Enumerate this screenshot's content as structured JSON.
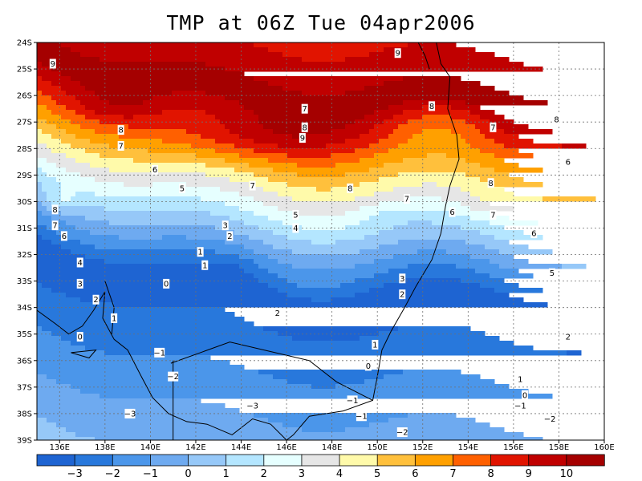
{
  "title": "TMP at 06Z Tue 04apr2006",
  "map": {
    "lat_ticks": [
      "24S",
      "25S",
      "26S",
      "27S",
      "28S",
      "29S",
      "30S",
      "31S",
      "32S",
      "33S",
      "34S",
      "35S",
      "36S",
      "37S",
      "38S",
      "39S"
    ],
    "lon_ticks": [
      "136E",
      "138E",
      "140E",
      "142E",
      "144E",
      "146E",
      "148E",
      "150E",
      "152E",
      "154E",
      "156E",
      "158E",
      "160E"
    ],
    "lon_range": [
      135,
      160
    ],
    "lat_range": [
      -24,
      -39
    ],
    "grid": true
  },
  "colorbar": {
    "labels": [
      "-3",
      "-2",
      "-1",
      "0",
      "1",
      "2",
      "3",
      "4",
      "5",
      "6",
      "7",
      "8",
      "9",
      "10"
    ],
    "colors": [
      "#1e64d2",
      "#2878dc",
      "#4b96ea",
      "#6eaaf0",
      "#96c8f8",
      "#b4e6ff",
      "#e6ffff",
      "#e6e6e6",
      "#fffaaa",
      "#ffc03c",
      "#ffa000",
      "#ff6000",
      "#e11400",
      "#c00000",
      "#a50000"
    ]
  },
  "contour_labels": [
    {
      "v": "9",
      "lon": 135.7,
      "lat": -24.8
    },
    {
      "v": "9",
      "lon": 150.9,
      "lat": -24.4
    },
    {
      "v": "7",
      "lon": 146.8,
      "lat": -26.5
    },
    {
      "v": "8",
      "lon": 146.8,
      "lat": -27.2
    },
    {
      "v": "9",
      "lon": 146.7,
      "lat": -27.6
    },
    {
      "v": "8",
      "lon": 152.4,
      "lat": -26.4
    },
    {
      "v": "7",
      "lon": 155.1,
      "lat": -27.2
    },
    {
      "v": "8",
      "lon": 157.9,
      "lat": -26.9
    },
    {
      "v": "8",
      "lon": 138.7,
      "lat": -27.3
    },
    {
      "v": "7",
      "lon": 138.7,
      "lat": -27.9
    },
    {
      "v": "6",
      "lon": 140.2,
      "lat": -28.8
    },
    {
      "v": "7",
      "lon": 144.5,
      "lat": -29.4
    },
    {
      "v": "8",
      "lon": 148.8,
      "lat": -29.5
    },
    {
      "v": "8",
      "lon": 155.0,
      "lat": -29.3
    },
    {
      "v": "6",
      "lon": 158.4,
      "lat": -28.5
    },
    {
      "v": "5",
      "lon": 141.4,
      "lat": -29.5
    },
    {
      "v": "7",
      "lon": 151.3,
      "lat": -29.9
    },
    {
      "v": "6",
      "lon": 153.3,
      "lat": -30.4
    },
    {
      "v": "7",
      "lon": 155.1,
      "lat": -30.5
    },
    {
      "v": "5",
      "lon": 146.4,
      "lat": -30.5
    },
    {
      "v": "8",
      "lon": 135.8,
      "lat": -30.3
    },
    {
      "v": "7",
      "lon": 135.8,
      "lat": -30.9
    },
    {
      "v": "6",
      "lon": 136.2,
      "lat": -31.3
    },
    {
      "v": "4",
      "lon": 146.4,
      "lat": -31.0
    },
    {
      "v": "3",
      "lon": 143.3,
      "lat": -30.9
    },
    {
      "v": "2",
      "lon": 143.5,
      "lat": -31.3
    },
    {
      "v": "6",
      "lon": 156.9,
      "lat": -31.2
    },
    {
      "v": "1",
      "lon": 142.2,
      "lat": -31.9
    },
    {
      "v": "1",
      "lon": 142.4,
      "lat": -32.4
    },
    {
      "v": "4",
      "lon": 136.9,
      "lat": -32.3
    },
    {
      "v": "5",
      "lon": 157.7,
      "lat": -32.7
    },
    {
      "v": "3",
      "lon": 151.1,
      "lat": -32.9
    },
    {
      "v": "3",
      "lon": 136.9,
      "lat": -33.1
    },
    {
      "v": "0",
      "lon": 140.7,
      "lat": -33.1
    },
    {
      "v": "2",
      "lon": 151.1,
      "lat": -33.5
    },
    {
      "v": "2",
      "lon": 137.6,
      "lat": -33.7
    },
    {
      "v": "2",
      "lon": 145.6,
      "lat": -34.2
    },
    {
      "v": "1",
      "lon": 138.4,
      "lat": -34.4
    },
    {
      "v": "0",
      "lon": 136.9,
      "lat": -35.1
    },
    {
      "v": "2",
      "lon": 158.4,
      "lat": -35.1
    },
    {
      "v": "1",
      "lon": 149.9,
      "lat": -35.4
    },
    {
      "v": "-1",
      "lon": 140.4,
      "lat": -35.7
    },
    {
      "v": "0",
      "lon": 149.6,
      "lat": -36.2
    },
    {
      "v": "-2",
      "lon": 141.0,
      "lat": -36.6
    },
    {
      "v": "1",
      "lon": 156.3,
      "lat": -36.7
    },
    {
      "v": "0",
      "lon": 156.5,
      "lat": -37.3
    },
    {
      "v": "-1",
      "lon": 148.9,
      "lat": -37.5
    },
    {
      "v": "-1",
      "lon": 156.3,
      "lat": -37.7
    },
    {
      "v": "-3",
      "lon": 144.5,
      "lat": -37.7
    },
    {
      "v": "-3",
      "lon": 139.1,
      "lat": -38.0
    },
    {
      "v": "-1",
      "lon": 149.3,
      "lat": -38.1
    },
    {
      "v": "-2",
      "lon": 157.6,
      "lat": -38.2
    },
    {
      "v": "-2",
      "lon": 151.1,
      "lat": -38.7
    }
  ]
}
